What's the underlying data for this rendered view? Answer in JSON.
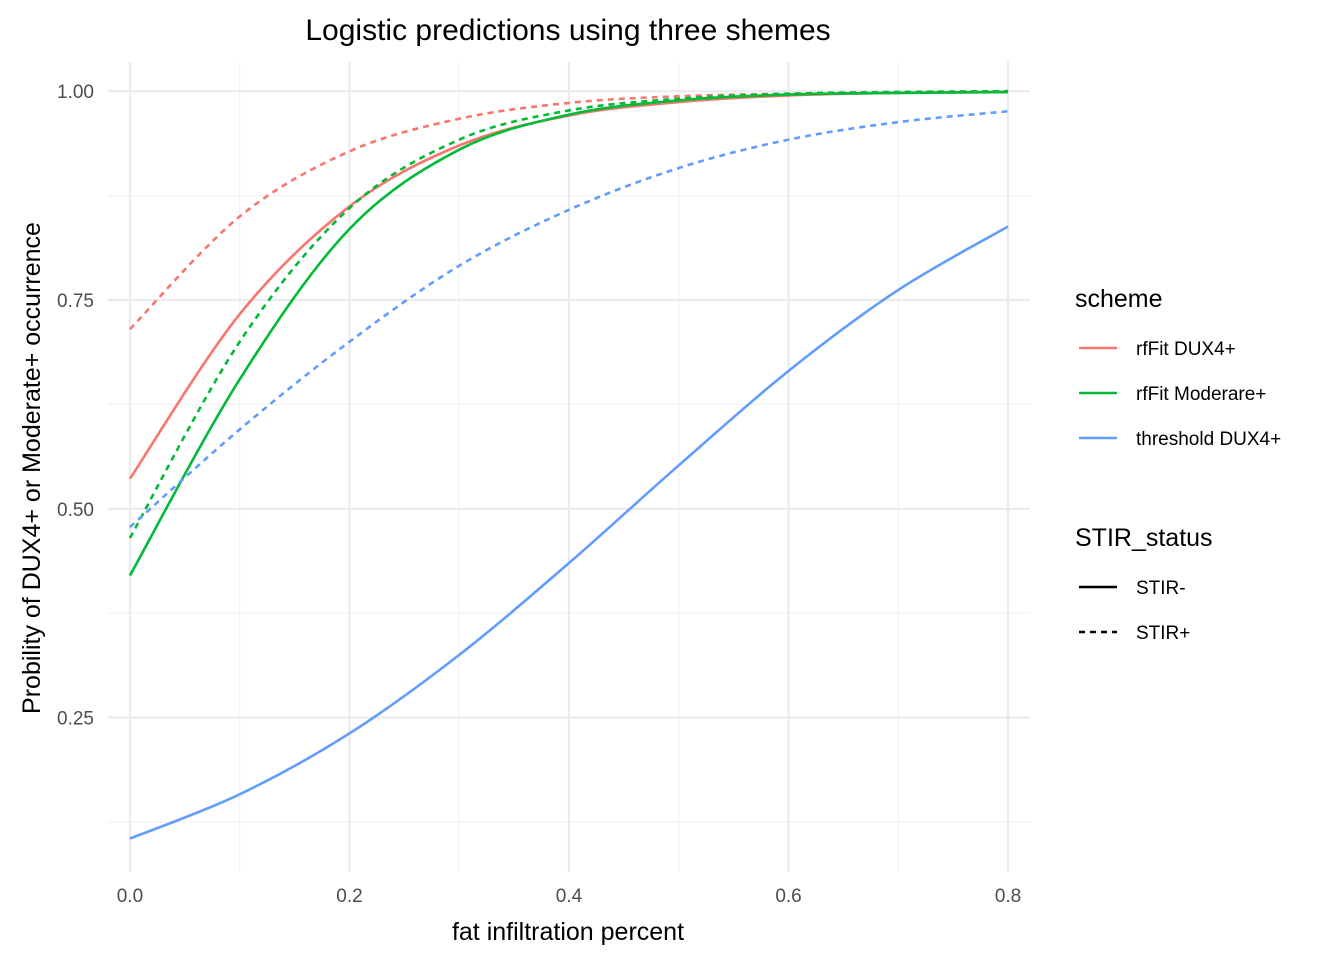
{
  "chart_data": {
    "type": "line",
    "title": "Logistic predictions using three shemes",
    "xlabel": "fat infiltration percent",
    "ylabel": "Probility of DUX4+ or Moderate+ occurrence",
    "xlim": [
      -0.02,
      0.82
    ],
    "ylim": [
      0.065,
      1.035
    ],
    "x_ticks": [
      0.0,
      0.2,
      0.4,
      0.6,
      0.8
    ],
    "x_tick_labels": [
      "0.0",
      "0.2",
      "0.4",
      "0.6",
      "0.8"
    ],
    "y_ticks": [
      0.25,
      0.5,
      0.75,
      1.0
    ],
    "y_tick_labels": [
      "0.25",
      "0.50",
      "0.75",
      "1.00"
    ],
    "grid": true,
    "legend_position": "right",
    "legends": [
      {
        "title": "scheme",
        "entries": [
          {
            "label": "rfFit DUX4+",
            "color": "#F8766D",
            "linetype": "solid"
          },
          {
            "label": "rfFit Moderare+",
            "color": "#00BA38",
            "linetype": "solid"
          },
          {
            "label": "threshold DUX4+",
            "color": "#619CFF",
            "linetype": "solid"
          }
        ]
      },
      {
        "title": "STIR_status",
        "entries": [
          {
            "label": "STIR-",
            "color": "#000000",
            "linetype": "solid"
          },
          {
            "label": "STIR+",
            "color": "#000000",
            "linetype": "dashed"
          }
        ]
      }
    ],
    "x": [
      0.0,
      0.1,
      0.2,
      0.3,
      0.4,
      0.5,
      0.6,
      0.7,
      0.8
    ],
    "series": [
      {
        "scheme": "rfFit DUX4+",
        "stir": "STIR-",
        "color": "#F8766D",
        "dash": false,
        "values": [
          0.536,
          0.733,
          0.862,
          0.935,
          0.971,
          0.987,
          0.995,
          0.998,
          0.999
        ]
      },
      {
        "scheme": "rfFit DUX4+",
        "stir": "STIR+",
        "color": "#F8766D",
        "dash": true,
        "values": [
          0.715,
          0.85,
          0.928,
          0.967,
          0.986,
          0.994,
          0.997,
          0.999,
          1.0
        ]
      },
      {
        "scheme": "rfFit Moderare+",
        "stir": "STIR-",
        "color": "#00BA38",
        "dash": false,
        "values": [
          0.42,
          0.655,
          0.835,
          0.93,
          0.972,
          0.989,
          0.996,
          0.998,
          0.999
        ]
      },
      {
        "scheme": "rfFit Moderare+",
        "stir": "STIR+",
        "color": "#00BA38",
        "dash": true,
        "values": [
          0.465,
          0.7,
          0.86,
          0.942,
          0.977,
          0.991,
          0.997,
          0.999,
          1.0
        ]
      },
      {
        "scheme": "threshold DUX4+",
        "stir": "STIR-",
        "color": "#619CFF",
        "dash": false,
        "values": [
          0.105,
          0.158,
          0.231,
          0.325,
          0.435,
          0.552,
          0.665,
          0.762,
          0.838
        ]
      },
      {
        "scheme": "threshold DUX4+",
        "stir": "STIR+",
        "color": "#619CFF",
        "dash": true,
        "values": [
          0.478,
          0.595,
          0.7,
          0.791,
          0.858,
          0.908,
          0.942,
          0.963,
          0.976
        ]
      }
    ]
  }
}
